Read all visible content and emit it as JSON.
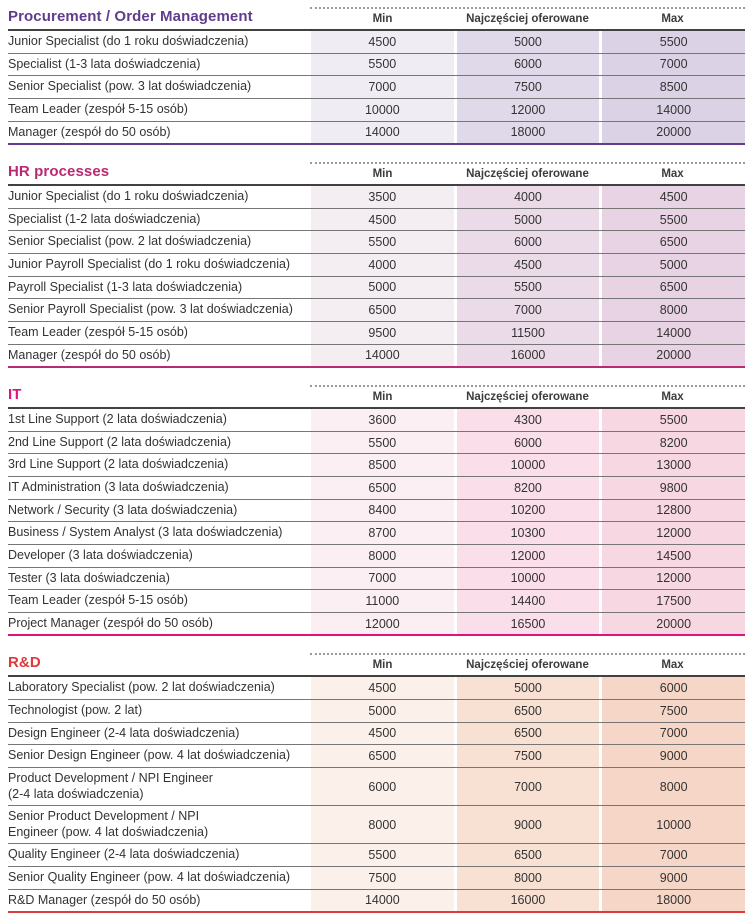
{
  "table_headers": {
    "min": "Min",
    "typical": "Najczęściej oferowane",
    "max": "Max"
  },
  "sections": [
    {
      "title": "Procurement / Order Management",
      "accent_color": "#5f3d8c",
      "column_colors": {
        "min": "#f0ecf4",
        "typical": "#e0d9ea",
        "max": "#dcd2e6"
      },
      "rows": [
        {
          "label": "Junior Specialist (do 1 roku doświadczenia)",
          "min": "4500",
          "typical": "5000",
          "max": "5500"
        },
        {
          "label": "Specialist (1-3 lata doświadczenia)",
          "min": "5500",
          "typical": "6000",
          "max": "7000"
        },
        {
          "label": "Senior Specialist (pow. 3 lat doświadczenia)",
          "min": "7000",
          "typical": "7500",
          "max": "8500"
        },
        {
          "label": "Team Leader (zespół 5-15 osób)",
          "min": "10000",
          "typical": "12000",
          "max": "14000"
        },
        {
          "label": "Manager (zespół do 50 osób)",
          "min": "14000",
          "typical": "18000",
          "max": "20000"
        }
      ]
    },
    {
      "title": "HR processes",
      "accent_color": "#b92a72",
      "column_colors": {
        "min": "#f4eef3",
        "typical": "#ebdbe9",
        "max": "#e7d3e3"
      },
      "rows": [
        {
          "label": "Junior Specialist (do 1 roku doświadczenia)",
          "min": "3500",
          "typical": "4000",
          "max": "4500"
        },
        {
          "label": "Specialist (1-2 lata doświadczenia)",
          "min": "4500",
          "typical": "5000",
          "max": "5500"
        },
        {
          "label": "Senior Specialist (pow. 2 lat doświadczenia)",
          "min": "5500",
          "typical": "6000",
          "max": "6500"
        },
        {
          "label": "Junior Payroll Specialist (do 1 roku doświadczenia)",
          "min": "4000",
          "typical": "4500",
          "max": "5000"
        },
        {
          "label": "Payroll Specialist (1-3 lata doświadczenia)",
          "min": "5000",
          "typical": "5500",
          "max": "6500"
        },
        {
          "label": "Senior Payroll Specialist (pow. 3 lat doświadczenia)",
          "min": "6500",
          "typical": "7000",
          "max": "8000"
        },
        {
          "label": "Team Leader (zespół 5-15 osób)",
          "min": "9500",
          "typical": "11500",
          "max": "14000"
        },
        {
          "label": "Manager (zespół do 50 osób)",
          "min": "14000",
          "typical": "16000",
          "max": "20000"
        }
      ]
    },
    {
      "title": "IT",
      "accent_color": "#e0127c",
      "column_colors": {
        "min": "#fbeff3",
        "typical": "#fadee9",
        "max": "#f7d7e2"
      },
      "rows": [
        {
          "label": "1st Line Support (2 lata doświadczenia)",
          "min": "3600",
          "typical": "4300",
          "max": "5500"
        },
        {
          "label": "2nd Line Support (2 lata doświadczenia)",
          "min": "5500",
          "typical": "6000",
          "max": "8200"
        },
        {
          "label": "3rd Line Support (2 lata doświadczenia)",
          "min": "8500",
          "typical": "10000",
          "max": "13000"
        },
        {
          "label": "IT Administration (3 lata doświadczenia)",
          "min": "6500",
          "typical": "8200",
          "max": "9800"
        },
        {
          "label": "Network / Security (3 lata doświadczenia)",
          "min": "8400",
          "typical": "10200",
          "max": "12800"
        },
        {
          "label": "Business / System Analyst (3 lata doświadczenia)",
          "min": "8700",
          "typical": "10300",
          "max": "12000"
        },
        {
          "label": "Developer (3 lata doświadczenia)",
          "min": "8000",
          "typical": "12000",
          "max": "14500"
        },
        {
          "label": "Tester (3 lata doświadczenia)",
          "min": "7000",
          "typical": "10000",
          "max": "12000"
        },
        {
          "label": "Team Leader (zespół 5-15 osób)",
          "min": "11000",
          "typical": "14400",
          "max": "17500"
        },
        {
          "label": "Project Manager (zespół do 50 osób)",
          "min": "12000",
          "typical": "16500",
          "max": "20000"
        }
      ]
    },
    {
      "title": "R&D",
      "accent_color": "#dd3b3b",
      "column_colors": {
        "min": "#fbf1ea",
        "typical": "#f8e1d3",
        "max": "#f6d6c6"
      },
      "rows": [
        {
          "label": "Laboratory Specialist (pow. 2 lat doświadczenia)",
          "min": "4500",
          "typical": "5000",
          "max": "6000"
        },
        {
          "label": "Technologist (pow. 2 lat)",
          "min": "5000",
          "typical": "6500",
          "max": "7500"
        },
        {
          "label": "Design Engineer (2-4 lata doświadczenia)",
          "min": "4500",
          "typical": "6500",
          "max": "7000"
        },
        {
          "label": "Senior Design Engineer (pow. 4 lat doświadczenia)",
          "min": "6500",
          "typical": "7500",
          "max": "9000"
        },
        {
          "label": "Product Development / NPI Engineer\n(2-4 lata doświadczenia)",
          "min": "6000",
          "typical": "7000",
          "max": "8000"
        },
        {
          "label": "Senior Product Development / NPI\nEngineer (pow. 4 lat doświadczenia)",
          "min": "8000",
          "typical": "9000",
          "max": "10000"
        },
        {
          "label": "Quality Engineer (2-4 lata doświadczenia)",
          "min": "5500",
          "typical": "6500",
          "max": "7000"
        },
        {
          "label": "Senior Quality Engineer (pow. 4 lat doświadczenia)",
          "min": "7500",
          "typical": "8000",
          "max": "9000"
        },
        {
          "label": "R&D Manager (zespół do 50 osób)",
          "min": "14000",
          "typical": "16000",
          "max": "18000"
        }
      ]
    }
  ]
}
